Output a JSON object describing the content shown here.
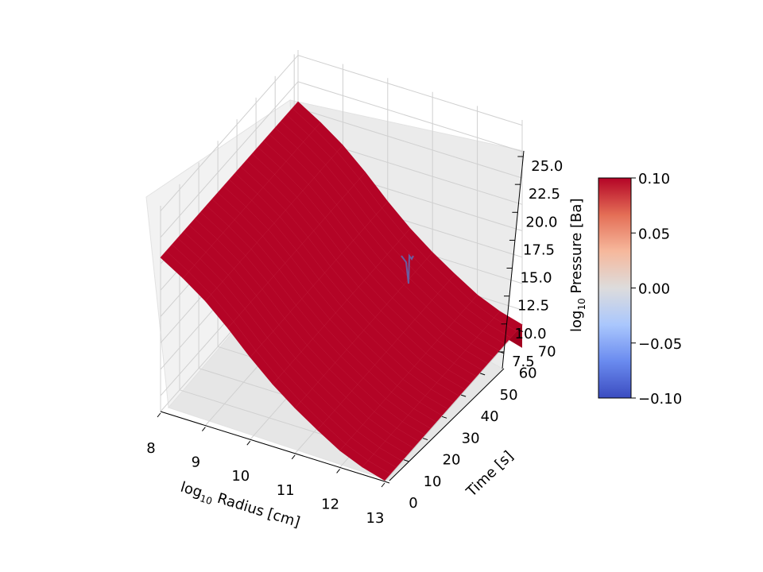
{
  "chart_data": {
    "type": "surface3d",
    "xlabel": {
      "main": "log",
      "sub": "10",
      "rest": " Radius [cm]"
    },
    "ylabel": "Time [s]",
    "zlabel": {
      "main": "log",
      "sub": "10",
      "rest": " Pressure [Ba]"
    },
    "x_ticks": [
      "8",
      "9",
      "10",
      "11",
      "12",
      "13"
    ],
    "y_ticks": [
      "0",
      "10",
      "20",
      "30",
      "40",
      "50",
      "60",
      "70"
    ],
    "z_ticks": [
      "7.5",
      "10.0",
      "12.5",
      "15.0",
      "17.5",
      "20.0",
      "22.5",
      "25.0"
    ],
    "xlim": [
      8,
      13
    ],
    "ylim": [
      0,
      72
    ],
    "zlim": [
      6,
      25.5
    ],
    "surface_profile": {
      "x": [
        8.0,
        8.5,
        9.0,
        9.5,
        10.0,
        10.5,
        11.0,
        11.5,
        12.0,
        12.5,
        13.0
      ],
      "z": [
        20.6,
        19.3,
        17.8,
        15.9,
        13.8,
        11.9,
        10.3,
        8.9,
        7.6,
        6.7,
        6.1
      ]
    },
    "colormap": "coolwarm",
    "surface_color": "#b40426",
    "grid": true,
    "colorbar": {
      "ticks": [
        "0.10",
        "0.05",
        "0.00",
        "−0.05",
        "−0.10"
      ],
      "range": [
        -0.1,
        0.1
      ],
      "colors": [
        "#3b4cc0",
        "#6a8bef",
        "#aac7fd",
        "#dddcdc",
        "#f6b89c",
        "#e46e56",
        "#b40426"
      ]
    }
  }
}
